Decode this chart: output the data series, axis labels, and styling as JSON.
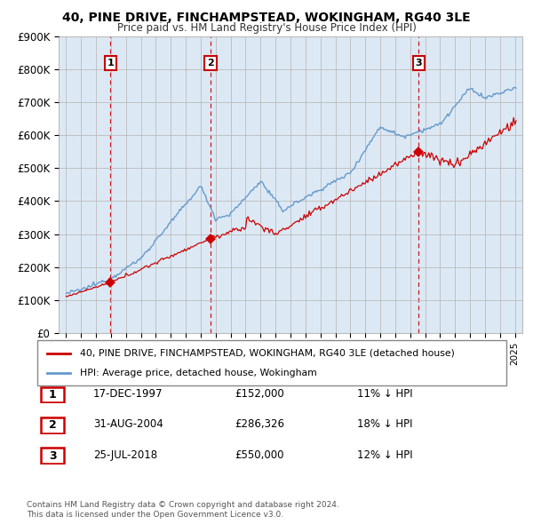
{
  "title": "40, PINE DRIVE, FINCHAMPSTEAD, WOKINGHAM, RG40 3LE",
  "subtitle": "Price paid vs. HM Land Registry's House Price Index (HPI)",
  "legend_line1": "40, PINE DRIVE, FINCHAMPSTEAD, WOKINGHAM, RG40 3LE (detached house)",
  "legend_line2": "HPI: Average price, detached house, Wokingham",
  "footer1": "Contains HM Land Registry data © Crown copyright and database right 2024.",
  "footer2": "This data is licensed under the Open Government Licence v3.0.",
  "sale_points": [
    {
      "label": "1",
      "date": "17-DEC-1997",
      "price": 152000,
      "pct": "11% ↓ HPI",
      "x": 1997.96
    },
    {
      "label": "2",
      "date": "31-AUG-2004",
      "price": 286326,
      "pct": "18% ↓ HPI",
      "x": 2004.66
    },
    {
      "label": "3",
      "date": "25-JUL-2018",
      "price": 550000,
      "pct": "12% ↓ HPI",
      "x": 2018.56
    }
  ],
  "dashed_line_color": "#cc0000",
  "sale_color": "#cc0000",
  "hpi_color": "#6699cc",
  "plot_bg_color": "#dce9f5",
  "y_ticks": [
    0,
    100000,
    200000,
    300000,
    400000,
    500000,
    600000,
    700000,
    800000,
    900000
  ],
  "y_labels": [
    "£0",
    "£100K",
    "£200K",
    "£300K",
    "£400K",
    "£500K",
    "£600K",
    "£700K",
    "£800K",
    "£900K"
  ],
  "x_min": 1994.5,
  "x_max": 2025.5,
  "y_min": 0,
  "y_max": 900000,
  "background_color": "#ffffff",
  "grid_color": "#bbbbbb",
  "label_box_color": "#cc0000",
  "table_data": [
    [
      "1",
      "17-DEC-1997",
      "£152,000",
      "11% ↓ HPI"
    ],
    [
      "2",
      "31-AUG-2004",
      "£286,326",
      "18% ↓ HPI"
    ],
    [
      "3",
      "25-JUL-2018",
      "£550,000",
      "12% ↓ HPI"
    ]
  ]
}
